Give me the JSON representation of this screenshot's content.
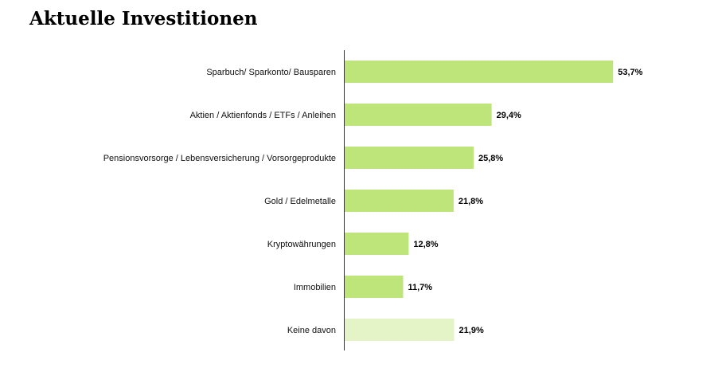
{
  "chart_data": {
    "type": "bar",
    "orientation": "horizontal",
    "title": "Aktuelle Investitionen",
    "xlabel": "",
    "ylabel": "",
    "categories": [
      "Sparbuch/ Sparkonto/ Bausparen",
      "Aktien / Aktienfonds / ETFs / Anleihen",
      "Pensionsvorsorge / Lebensversicherung / Vorsorgeprodukte",
      "Gold / Edelmetalle",
      "Kryptowährungen",
      "Immobilien",
      "Keine davon"
    ],
    "values": [
      53.7,
      29.4,
      25.8,
      21.8,
      12.8,
      11.7,
      21.9
    ],
    "value_labels": [
      "53,7%",
      "29,4%",
      "25,8%",
      "21,8%",
      "12,8%",
      "11,7%",
      "21,9%"
    ],
    "xlim": [
      0,
      100
    ],
    "grid": false,
    "legend": "none",
    "colors": {
      "bar": "#bde57a",
      "bar_highlight_last": "#e4f4c7",
      "axis": "#333333"
    }
  }
}
